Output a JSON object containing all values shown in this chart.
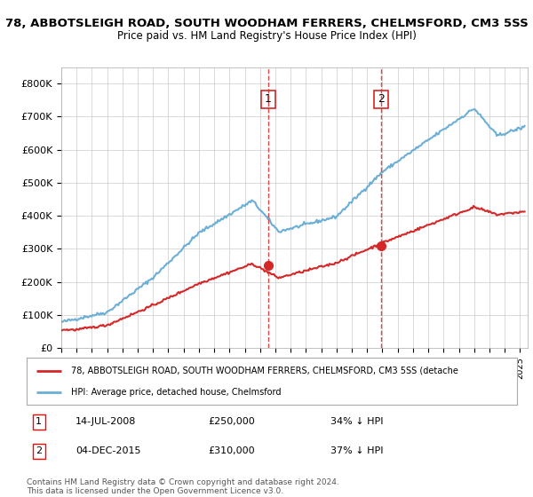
{
  "title_line1": "78, ABBOTSLEIGH ROAD, SOUTH WOODHAM FERRERS, CHELMSFORD, CM3 5SS",
  "title_line2": "Price paid vs. HM Land Registry's House Price Index (HPI)",
  "ylim": [
    0,
    850000
  ],
  "yticks": [
    0,
    100000,
    200000,
    300000,
    400000,
    500000,
    600000,
    700000,
    800000
  ],
  "ytick_labels": [
    "£0",
    "£100K",
    "£200K",
    "£300K",
    "£400K",
    "£500K",
    "£600K",
    "£700K",
    "£800K"
  ],
  "hpi_color": "#6baed6",
  "price_color": "#d62728",
  "marker_color": "#d62728",
  "vline_color": "#d62728",
  "transaction1": {
    "date": 2008.54,
    "price": 250000,
    "label": "14-JUL-2008",
    "pct": "34%",
    "num": "1"
  },
  "transaction2": {
    "date": 2015.92,
    "price": 310000,
    "label": "04-DEC-2015",
    "pct": "37%",
    "num": "2"
  },
  "legend_line1": "78, ABBOTSLEIGH ROAD, SOUTH WOODHAM FERRERS, CHELMSFORD, CM3 5SS (detache",
  "legend_line2": "HPI: Average price, detached house, Chelmsford",
  "footnote": "Contains HM Land Registry data © Crown copyright and database right 2024.\nThis data is licensed under the Open Government Licence v3.0.",
  "background_color": "#ffffff",
  "grid_color": "#cccccc"
}
